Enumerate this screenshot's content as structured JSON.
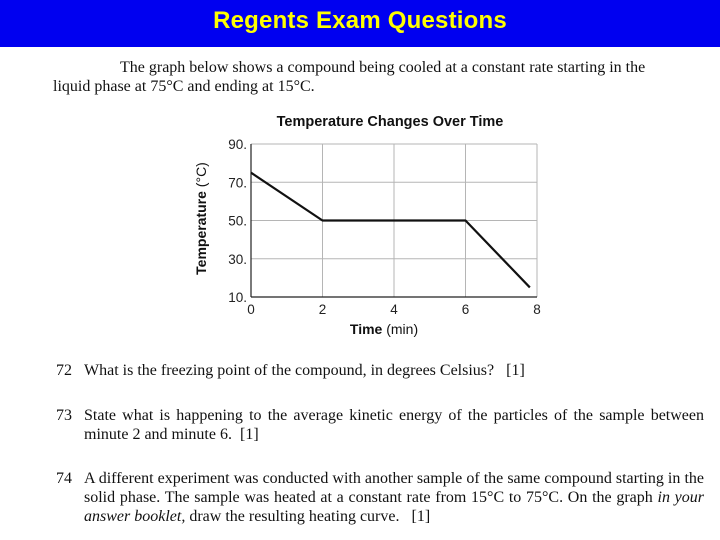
{
  "slide": {
    "title": "Regents Exam Questions"
  },
  "intro": {
    "line1": "The graph below shows a compound being cooled at a constant rate starting in the",
    "line2": "liquid phase at 75°C and ending at 15°C."
  },
  "chart_data": {
    "type": "line",
    "title": "Temperature Changes Over Time",
    "xlabel": "Time (min)",
    "ylabel": "Temperature (°C)",
    "xlim": [
      0,
      8
    ],
    "ylim": [
      10,
      90
    ],
    "xticks": [
      0,
      2,
      4,
      6,
      8
    ],
    "yticks": [
      10,
      30,
      50,
      70,
      90
    ],
    "ytick_labels": [
      "10.",
      "30.",
      "50.",
      "70.",
      "90."
    ],
    "grid": true,
    "series": [
      {
        "x": [
          0,
          2,
          6,
          7.8
        ],
        "y": [
          75,
          50,
          50,
          15
        ]
      }
    ]
  },
  "questions": [
    {
      "number": "72",
      "text": "What is the freezing point of the compound, in degrees Celsius?",
      "points": "[1]"
    },
    {
      "number": "73",
      "text": "State what is happening to the average kinetic energy of the particles of the sample between minute 2 and minute 6.",
      "points": "[1]"
    },
    {
      "number": "74",
      "text_a": "A different experiment was conducted with another sample of the same compound starting in the solid phase. The sample was heated at a constant rate from 15°C to 75°C. On the graph",
      "text_em": "in your answer booklet,",
      "text_b": "draw the resulting heating curve.",
      "points": "[1]"
    }
  ]
}
